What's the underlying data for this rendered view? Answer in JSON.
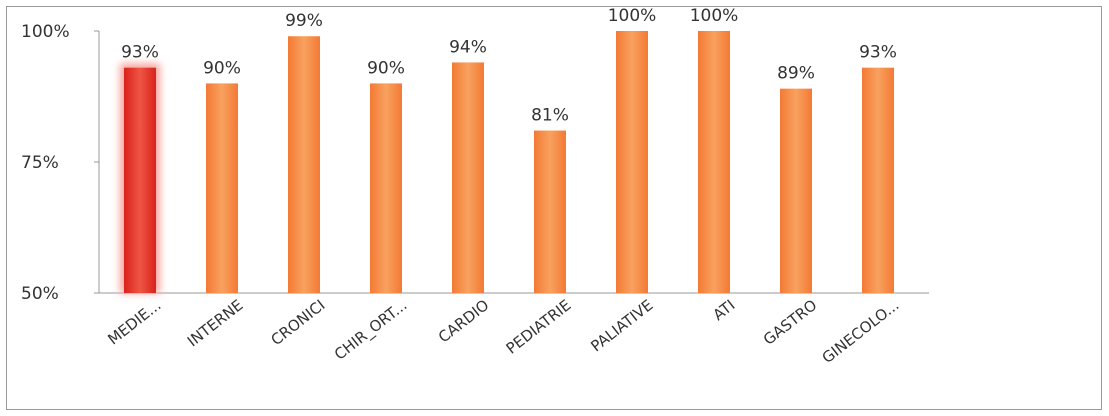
{
  "chart_data": {
    "type": "bar",
    "categories": [
      "MEDIE...",
      "INTERNE",
      "CRONICI",
      "CHIR_ORT...",
      "CARDIO",
      "PEDIATRIE",
      "PALIATIVE",
      "ATI",
      "GASTRO",
      "GINECOLO..."
    ],
    "values": [
      93,
      90,
      99,
      90,
      94,
      81,
      100,
      100,
      89,
      93
    ],
    "data_labels": [
      "93%",
      "90%",
      "99%",
      "90%",
      "94%",
      "81%",
      "100%",
      "100%",
      "89%",
      "93%"
    ],
    "title": "",
    "xlabel": "",
    "ylabel": "",
    "ylim": [
      50,
      100
    ],
    "yticks": [
      100,
      75,
      50
    ],
    "ytick_labels": [
      "100%",
      "75%",
      "50%"
    ],
    "grid": false,
    "legend": "none",
    "highlight_index": 0,
    "colors": {
      "bar": "#f58a45",
      "highlight": "#e8322a",
      "highlight_glow": "#f7a39c",
      "axis": "#9a9a9a",
      "text": "#333333"
    }
  }
}
